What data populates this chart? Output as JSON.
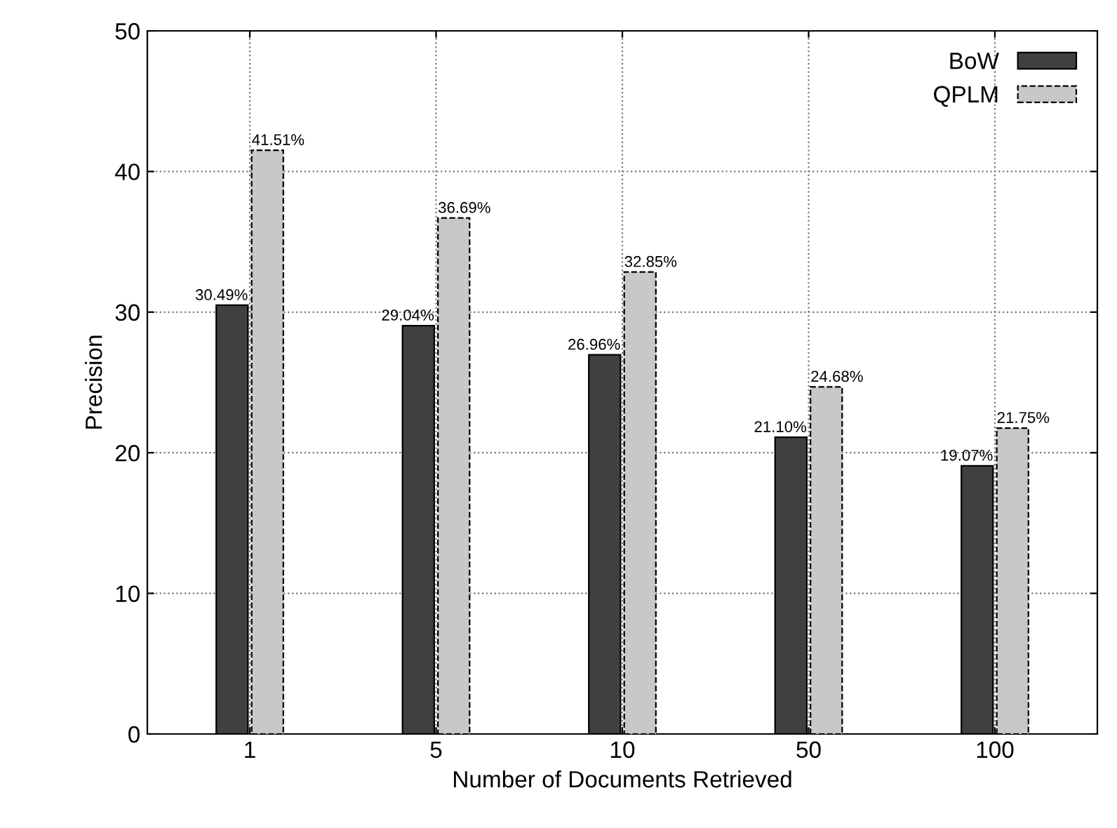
{
  "chart_data": {
    "type": "bar",
    "xlabel": "Number of Documents Retrieved",
    "ylabel": "Precision",
    "categories": [
      "1",
      "5",
      "10",
      "50",
      "100"
    ],
    "series": [
      {
        "name": "BoW",
        "color": "#404040",
        "line_style": "solid",
        "values": [
          30.49,
          29.04,
          26.96,
          21.1,
          19.07
        ],
        "value_labels": [
          "30.49%",
          "29.04%",
          "26.96%",
          "21.10%",
          "19.07%"
        ]
      },
      {
        "name": "QPLM",
        "color": "#c8c8c8",
        "line_style": "dashed",
        "values": [
          41.51,
          36.69,
          32.85,
          24.68,
          21.75
        ],
        "value_labels": [
          "41.51%",
          "36.69%",
          "32.85%",
          "24.68%",
          "21.75%"
        ]
      }
    ],
    "ylim": [
      0,
      50
    ],
    "yticks": [
      0,
      10,
      20,
      30,
      40,
      50
    ],
    "grid": true,
    "legend": "top right"
  }
}
